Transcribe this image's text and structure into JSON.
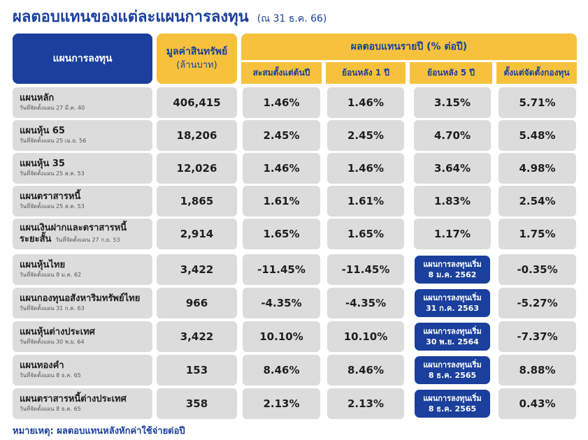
{
  "title": {
    "main": "ผลตอบแทนของแต่ละแผนการลงทุน",
    "sub": "(ณ 31 ธ.ค. 66)"
  },
  "headers": {
    "plan": "แผนการลงทุน",
    "asset": "มูลค่าสินทรัพย์",
    "asset_unit": "(ล้านบาท)",
    "annual_return": "ผลตอบแทนรายปี (% ต่อปี)",
    "ytd": "สะสมตั้งแต่ต้นปี",
    "y1": "ย้อนหลัง 1 ปี",
    "y5": "ย้อนหลัง 5 ปี",
    "inception": "ตั้งแต่จัดตั้งกองทุน"
  },
  "rows": [
    {
      "name": "แผนหลัก",
      "date": "วันที่จัดตั้งแผน 27 มี.ค. 40",
      "asset": "406,415",
      "ytd": "1.46%",
      "y1": "1.46%",
      "y5": "3.15%",
      "inception": "5.71%"
    },
    {
      "name": "แผนหุ้น 65",
      "date": "วันที่จัดตั้งแผน 25 เม.ย. 56",
      "asset": "18,206",
      "ytd": "2.45%",
      "y1": "2.45%",
      "y5": "4.70%",
      "inception": "5.48%"
    },
    {
      "name": "แผนหุ้น 35",
      "date": "วันที่จัดตั้งแผน 25 ส.ค. 53",
      "asset": "12,026",
      "ytd": "1.46%",
      "y1": "1.46%",
      "y5": "3.64%",
      "inception": "4.98%"
    },
    {
      "name": "แผนตราสารหนี้",
      "date": "วันที่จัดตั้งแผน 25 ส.ค. 53",
      "asset": "1,865",
      "ytd": "1.61%",
      "y1": "1.61%",
      "y5": "1.83%",
      "inception": "2.54%"
    },
    {
      "name": "แผนเงินฝากและตราสารหนี้",
      "name2": "ระยะสั้น",
      "date": "วันที่จัดตั้งแผน 27 ก.ย. 53",
      "asset": "2,914",
      "ytd": "1.65%",
      "y1": "1.65%",
      "y5": "1.17%",
      "inception": "1.75%"
    },
    {
      "name": "แผนหุ้นไทย",
      "date": "วันที่จัดตั้งแผน 8 ม.ค. 62",
      "asset": "3,422",
      "ytd": "-11.45%",
      "y1": "-11.45%",
      "badge_l1": "แผนการลงทุนเริ่ม",
      "badge_l2": "8 ม.ค. 2562",
      "inception": "-0.35%"
    },
    {
      "name": "แผนกองทุนอสังหาริมทรัพย์ไทย",
      "date": "วันที่จัดตั้งแผน 31 ก.ค. 63",
      "asset": "966",
      "ytd": "-4.35%",
      "y1": "-4.35%",
      "badge_l1": "แผนการลงทุนเริ่ม",
      "badge_l2": "31 ก.ค. 2563",
      "inception": "-5.27%"
    },
    {
      "name": "แผนหุ้นต่างประเทศ",
      "date": "วันที่จัดตั้งแผน 30 พ.ย. 64",
      "asset": "3,422",
      "ytd": "10.10%",
      "y1": "10.10%",
      "badge_l1": "แผนการลงทุนเริ่ม",
      "badge_l2": "30 พ.ย. 2564",
      "inception": "-7.37%"
    },
    {
      "name": "แผนทองคำ",
      "date": "วันที่จัดตั้งแผน 8 ธ.ค. 65",
      "asset": "153",
      "ytd": "8.46%",
      "y1": "8.46%",
      "badge_l1": "แผนการลงทุนเริ่ม",
      "badge_l2": "8 ธ.ค. 2565",
      "inception": "8.88%"
    },
    {
      "name": "แผนตราสารหนี้ต่างประเทศ",
      "date": "วันที่จัดตั้งแผน 8 ธ.ค. 65",
      "asset": "358",
      "ytd": "2.13%",
      "y1": "2.13%",
      "badge_l1": "แผนการลงทุนเริ่ม",
      "badge_l2": "8 ธ.ค. 2565",
      "inception": "0.43%"
    }
  ],
  "note": "หมายเหตุ: ผลตอบแทนหลังหักค่าใช้จ่ายต่อปี"
}
